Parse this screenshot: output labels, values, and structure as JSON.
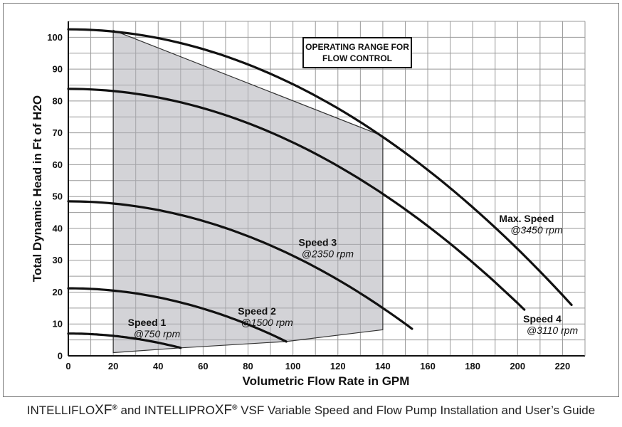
{
  "chart_data": {
    "type": "line",
    "xlabel": "Volumetric Flow Rate in GPM",
    "ylabel": "Total Dynamic Head in Ft of H2O",
    "xlim": [
      0,
      230
    ],
    "ylim": [
      0,
      105
    ],
    "x_ticks": [
      0,
      20,
      40,
      60,
      80,
      100,
      120,
      140,
      160,
      180,
      200,
      220
    ],
    "y_ticks": [
      0,
      10,
      20,
      30,
      40,
      50,
      60,
      70,
      80,
      90,
      100
    ],
    "grid": true,
    "annotation_box": [
      "OPERATING RANGE FOR",
      "FLOW CONTROL"
    ],
    "operating_range": {
      "label": "OPERATING RANGE FOR FLOW CONTROL",
      "polygon": [
        [
          20,
          1
        ],
        [
          50,
          2.5
        ],
        [
          97,
          4.5
        ],
        [
          140,
          8.2
        ],
        [
          140,
          69
        ],
        [
          20,
          102.2
        ]
      ]
    },
    "series": [
      {
        "name": "Speed 1",
        "rpm_label": "@750 rpm",
        "shape": "top_y_x0",
        "params": [
          7,
          50,
          2.5
        ],
        "label_pos": [
          35,
          9.4
        ]
      },
      {
        "name": "Speed 2",
        "rpm_label": "@1500 rpm",
        "shape": "top_y_x0",
        "params": [
          21.2,
          97,
          4.5
        ],
        "label_pos": [
          84,
          13
        ]
      },
      {
        "name": "Speed 3",
        "rpm_label": "@2350 rpm",
        "shape": "top_y_x0",
        "params": [
          48.5,
          153,
          8.5
        ],
        "label_pos": [
          111,
          34.5
        ]
      },
      {
        "name": "Speed 4",
        "rpm_label": "@3110 rpm",
        "shape": "top_y_x0",
        "params": [
          83.8,
          203,
          14.5
        ],
        "label_pos": [
          211,
          10.5
        ]
      },
      {
        "name": "Max. Speed",
        "rpm_label": "@3450 rpm",
        "shape": "top_y_x0",
        "params": [
          102.5,
          224,
          16
        ],
        "label_pos": [
          204,
          42
        ]
      }
    ]
  },
  "footer": {
    "prefix": "INTELLIFLO",
    "xf1": "XF",
    "reg1": "®",
    "middle": " and INTELLIPRO",
    "xf2": "XF",
    "reg2": "®",
    "suffix": " VSF Variable Speed and Flow Pump Installation and User’s Guide"
  }
}
